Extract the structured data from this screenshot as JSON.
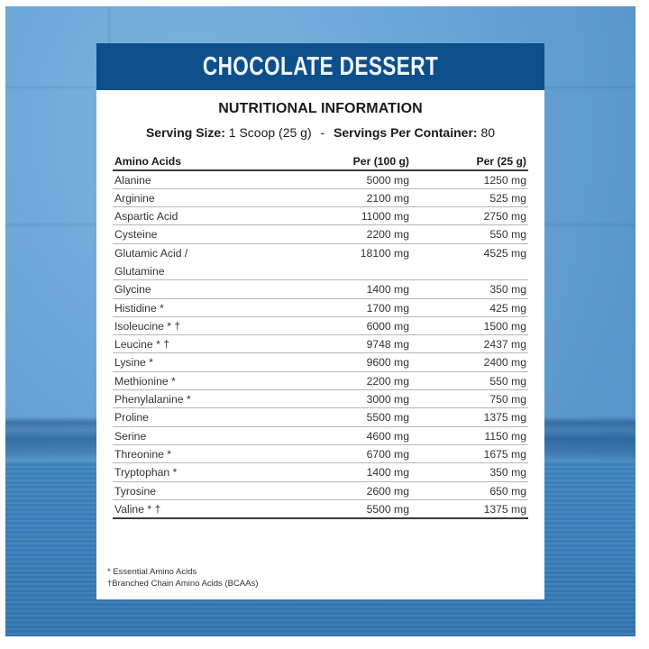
{
  "header": {
    "title": "CHOCOLATE DESSERT",
    "band_color": "#0d4f8b",
    "title_color": "#eef6fb"
  },
  "info": {
    "heading": "NUTRITIONAL INFORMATION",
    "serving_size_label": "Serving Size:",
    "serving_size_value": "1 Scoop (25 g)",
    "separator": "-",
    "servings_per_container_label": "Servings Per Container:",
    "servings_per_container_value": "80"
  },
  "table": {
    "columns": [
      "Amino Acids",
      "Per (100 g)",
      "Per  (25 g)"
    ],
    "rows": [
      {
        "name": "Alanine",
        "per100": "5000 mg",
        "per25": "1250 mg"
      },
      {
        "name": "Arginine",
        "per100": "2100 mg",
        "per25": "525 mg"
      },
      {
        "name": "Aspartic Acid",
        "per100": "11000 mg",
        "per25": "2750 mg"
      },
      {
        "name": "Cysteine",
        "per100": "2200 mg",
        "per25": "550 mg"
      },
      {
        "name": "Glutamic Acid /",
        "name_line2": "Glutamine",
        "per100": "18100 mg",
        "per25": "4525 mg"
      },
      {
        "name": "Glycine",
        "per100": "1400 mg",
        "per25": "350 mg"
      },
      {
        "name": "Histidine *",
        "per100": "1700 mg",
        "per25": "425 mg"
      },
      {
        "name": "Isoleucine * †",
        "per100": "6000 mg",
        "per25": "1500 mg"
      },
      {
        "name": "Leucine * †",
        "per100": "9748 mg",
        "per25": "2437 mg"
      },
      {
        "name": "Lysine *",
        "per100": "9600 mg",
        "per25": "2400 mg"
      },
      {
        "name": "Methionine *",
        "per100": "2200 mg",
        "per25": "550 mg"
      },
      {
        "name": "Phenylalanine *",
        "per100": "3000 mg",
        "per25": "750 mg"
      },
      {
        "name": "Proline",
        "per100": "5500 mg",
        "per25": "1375 mg"
      },
      {
        "name": "Serine",
        "per100": "4600 mg",
        "per25": "1150 mg"
      },
      {
        "name": "Threonine *",
        "per100": "6700 mg",
        "per25": "1675 mg"
      },
      {
        "name": "Tryptophan *",
        "per100": "1400 mg",
        "per25": "350 mg"
      },
      {
        "name": "Tyrosine",
        "per100": "2600 mg",
        "per25": "650 mg"
      },
      {
        "name": "Valine * †",
        "per100": "5500 mg",
        "per25": "1375 mg"
      }
    ]
  },
  "footnotes": [
    "* Essential Amino Acids",
    "†Branched Chain Amino Acids (BCAAs)"
  ]
}
